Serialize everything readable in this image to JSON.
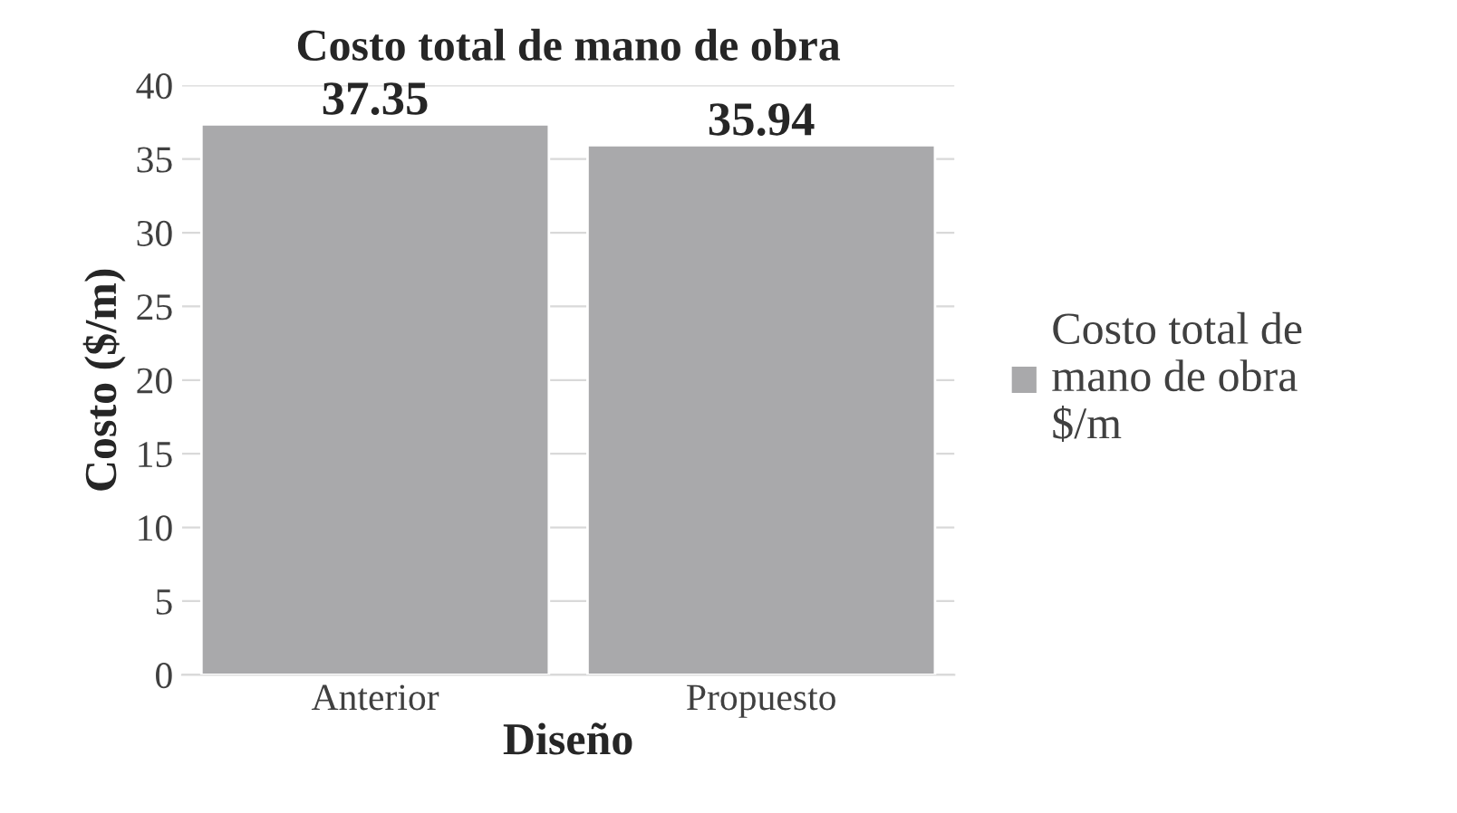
{
  "chart_data": {
    "type": "bar",
    "title": "Costo total de mano de obra",
    "xlabel": "Diseño",
    "ylabel": "Costo ($/m)",
    "categories": [
      "Anterior",
      "Propuesto"
    ],
    "series": [
      {
        "name": "Costo total de mano de obra $/m",
        "color": "#a9a9ab",
        "values": [
          37.35,
          35.94
        ]
      }
    ],
    "ylim": [
      0,
      40
    ],
    "yticks": [
      0,
      5,
      10,
      15,
      20,
      25,
      30,
      35,
      40
    ],
    "grid": "y",
    "legend": "right",
    "data_labels": true
  }
}
